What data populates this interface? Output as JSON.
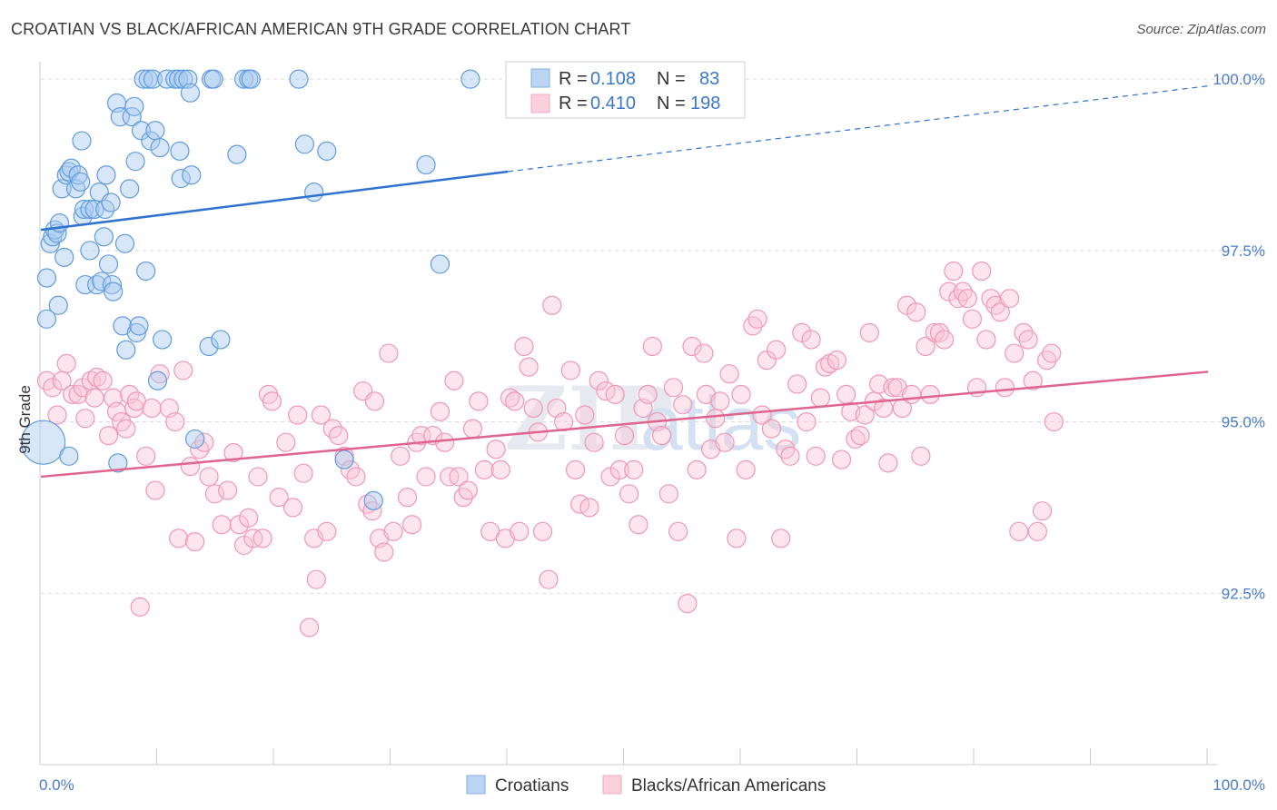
{
  "title": "CROATIAN VS BLACK/AFRICAN AMERICAN 9TH GRADE CORRELATION CHART",
  "source": "Source: ZipAtlas.com",
  "watermark": {
    "zip": "ZIP",
    "atlas": "atlas"
  },
  "colors": {
    "blue": "#7fb0e8",
    "blue_line": "#2f73d0",
    "pink": "#f5a8c0",
    "pink_line": "#e0648e",
    "axis_text": "#4a7cc9",
    "grid": "#d9d9d9"
  },
  "legend": {
    "rows": [
      {
        "r_label": "R =",
        "r_value": "0.108",
        "n_label": "N =",
        "n_value": "83"
      },
      {
        "r_label": "R =",
        "r_value": "0.410",
        "n_label": "N =",
        "n_value": "198"
      }
    ]
  },
  "bottom_legend": [
    "Croatians",
    "Blacks/African Americans"
  ],
  "chart_data": {
    "type": "scatter",
    "ylabel": "9th Grade",
    "xlim": [
      0,
      100
    ],
    "ylim": [
      90.0,
      100.2
    ],
    "x_tick_labels": [
      "0.0%",
      "100.0%"
    ],
    "y_ticks": [
      92.5,
      95.0,
      97.5,
      100.0
    ],
    "y_tick_labels": [
      "92.5%",
      "95.0%",
      "97.5%",
      "100.0%"
    ],
    "grid": true,
    "series": [
      {
        "name": "Croatians",
        "color": "#7fb0e8",
        "trend": {
          "x": [
            0,
            40
          ],
          "y": [
            97.8,
            98.65
          ],
          "dashed_to": [
            100,
            99.9
          ]
        },
        "points": [
          [
            0.2,
            94.7
          ],
          [
            0.5,
            96.5
          ],
          [
            0.5,
            97.1
          ],
          [
            0.8,
            97.6
          ],
          [
            1.0,
            97.7
          ],
          [
            1.2,
            97.8
          ],
          [
            1.4,
            97.75
          ],
          [
            1.5,
            96.7
          ],
          [
            1.6,
            97.9
          ],
          [
            1.8,
            98.4
          ],
          [
            2.0,
            97.4
          ],
          [
            2.2,
            98.6
          ],
          [
            2.4,
            98.65
          ],
          [
            2.6,
            98.7
          ],
          [
            2.4,
            94.5
          ],
          [
            3.0,
            98.4
          ],
          [
            3.2,
            98.6
          ],
          [
            3.4,
            98.5
          ],
          [
            3.5,
            99.1
          ],
          [
            3.6,
            98.0
          ],
          [
            3.7,
            98.1
          ],
          [
            3.8,
            97.0
          ],
          [
            4.2,
            98.1
          ],
          [
            4.2,
            97.5
          ],
          [
            4.6,
            98.1
          ],
          [
            4.8,
            97.0
          ],
          [
            5.0,
            98.35
          ],
          [
            5.2,
            97.05
          ],
          [
            5.4,
            97.7
          ],
          [
            5.5,
            98.1
          ],
          [
            5.6,
            98.6
          ],
          [
            5.8,
            97.3
          ],
          [
            6.0,
            98.2
          ],
          [
            6.1,
            97.0
          ],
          [
            6.2,
            96.9
          ],
          [
            6.5,
            99.65
          ],
          [
            6.6,
            94.4
          ],
          [
            6.8,
            99.45
          ],
          [
            7.0,
            96.4
          ],
          [
            7.2,
            97.6
          ],
          [
            7.3,
            96.05
          ],
          [
            7.6,
            98.4
          ],
          [
            7.8,
            99.45
          ],
          [
            8.0,
            99.6
          ],
          [
            8.1,
            98.8
          ],
          [
            8.2,
            96.3
          ],
          [
            8.4,
            96.4
          ],
          [
            8.6,
            99.25
          ],
          [
            8.8,
            100.0
          ],
          [
            9.0,
            97.2
          ],
          [
            9.2,
            100.0
          ],
          [
            9.4,
            99.1
          ],
          [
            9.6,
            100.0
          ],
          [
            9.8,
            99.25
          ],
          [
            10.0,
            95.6
          ],
          [
            10.2,
            99.0
          ],
          [
            10.4,
            96.2
          ],
          [
            10.8,
            100.0
          ],
          [
            11.5,
            100.0
          ],
          [
            11.8,
            100.0
          ],
          [
            11.9,
            98.95
          ],
          [
            12.0,
            98.55
          ],
          [
            12.2,
            100.0
          ],
          [
            12.6,
            100.0
          ],
          [
            12.8,
            99.8
          ],
          [
            12.9,
            98.6
          ],
          [
            13.2,
            94.75
          ],
          [
            14.4,
            96.1
          ],
          [
            14.6,
            100.0
          ],
          [
            14.8,
            100.0
          ],
          [
            15.4,
            96.2
          ],
          [
            16.8,
            98.9
          ],
          [
            17.4,
            100.0
          ],
          [
            17.8,
            100.0
          ],
          [
            18.0,
            100.0
          ],
          [
            22.1,
            100.0
          ],
          [
            22.6,
            99.05
          ],
          [
            23.4,
            98.35
          ],
          [
            24.5,
            98.95
          ],
          [
            26.0,
            94.45
          ],
          [
            28.5,
            93.85
          ],
          [
            33.0,
            98.75
          ],
          [
            34.2,
            97.3
          ],
          [
            36.8,
            100.0
          ]
        ]
      },
      {
        "name": "Blacks/African Americans",
        "color": "#f5a8c0",
        "trend": {
          "x": [
            0,
            100
          ],
          "y": [
            94.2,
            95.73
          ]
        },
        "points": [
          [
            0.5,
            95.6
          ],
          [
            1.0,
            95.5
          ],
          [
            1.4,
            95.1
          ],
          [
            1.8,
            95.6
          ],
          [
            2.2,
            95.85
          ],
          [
            2.7,
            95.4
          ],
          [
            3.2,
            95.4
          ],
          [
            3.6,
            95.5
          ],
          [
            3.8,
            95.05
          ],
          [
            4.3,
            95.6
          ],
          [
            4.6,
            95.35
          ],
          [
            4.8,
            95.65
          ],
          [
            5.3,
            95.6
          ],
          [
            5.8,
            94.8
          ],
          [
            6.2,
            95.35
          ],
          [
            6.5,
            95.15
          ],
          [
            6.9,
            95.0
          ],
          [
            7.3,
            94.9
          ],
          [
            7.6,
            95.4
          ],
          [
            8.0,
            95.2
          ],
          [
            8.2,
            95.3
          ],
          [
            8.5,
            92.3
          ],
          [
            9.0,
            94.5
          ],
          [
            9.5,
            95.2
          ],
          [
            9.8,
            94.0
          ],
          [
            10.2,
            95.7
          ],
          [
            11.0,
            95.2
          ],
          [
            11.5,
            95.0
          ],
          [
            11.8,
            93.3
          ],
          [
            12.2,
            95.75
          ],
          [
            12.8,
            94.35
          ],
          [
            13.2,
            93.25
          ],
          [
            13.6,
            94.6
          ],
          [
            14.0,
            94.7
          ],
          [
            14.4,
            94.2
          ],
          [
            14.9,
            93.95
          ],
          [
            15.5,
            93.5
          ],
          [
            16.0,
            94.0
          ],
          [
            16.5,
            94.55
          ],
          [
            17.0,
            93.5
          ],
          [
            17.4,
            93.2
          ],
          [
            17.8,
            93.6
          ],
          [
            18.2,
            93.3
          ],
          [
            18.6,
            94.2
          ],
          [
            19.0,
            93.3
          ],
          [
            19.5,
            95.4
          ],
          [
            19.8,
            95.3
          ],
          [
            20.4,
            93.9
          ],
          [
            21.0,
            94.7
          ],
          [
            21.6,
            93.75
          ],
          [
            22.0,
            95.1
          ],
          [
            22.5,
            94.25
          ],
          [
            23.0,
            92.0
          ],
          [
            23.4,
            93.3
          ],
          [
            23.6,
            92.7
          ],
          [
            24.0,
            95.1
          ],
          [
            24.5,
            93.4
          ],
          [
            25.0,
            94.9
          ],
          [
            25.5,
            94.8
          ],
          [
            26.0,
            94.5
          ],
          [
            26.5,
            94.3
          ],
          [
            27.0,
            94.2
          ],
          [
            27.6,
            95.45
          ],
          [
            28.0,
            93.8
          ],
          [
            28.4,
            93.7
          ],
          [
            28.6,
            95.3
          ],
          [
            29.0,
            93.3
          ],
          [
            29.4,
            93.1
          ],
          [
            29.8,
            96.0
          ],
          [
            30.2,
            93.4
          ],
          [
            30.8,
            94.5
          ],
          [
            31.4,
            93.9
          ],
          [
            31.8,
            93.5
          ],
          [
            32.2,
            94.7
          ],
          [
            32.6,
            94.8
          ],
          [
            33.0,
            94.2
          ],
          [
            33.6,
            94.8
          ],
          [
            34.2,
            95.15
          ],
          [
            34.6,
            94.7
          ],
          [
            35.0,
            94.2
          ],
          [
            35.4,
            95.6
          ],
          [
            35.8,
            94.2
          ],
          [
            36.2,
            93.9
          ],
          [
            36.6,
            94.0
          ],
          [
            37.0,
            94.9
          ],
          [
            37.5,
            95.3
          ],
          [
            38.0,
            94.3
          ],
          [
            38.5,
            93.4
          ],
          [
            39.0,
            94.6
          ],
          [
            39.4,
            94.3
          ],
          [
            39.8,
            93.3
          ],
          [
            40.2,
            95.35
          ],
          [
            40.6,
            95.3
          ],
          [
            41.0,
            93.4
          ],
          [
            41.4,
            96.1
          ],
          [
            41.8,
            95.8
          ],
          [
            42.2,
            95.2
          ],
          [
            42.6,
            94.85
          ],
          [
            43.0,
            93.4
          ],
          [
            43.5,
            92.7
          ],
          [
            43.8,
            96.7
          ],
          [
            44.2,
            95.2
          ],
          [
            44.8,
            95.0
          ],
          [
            45.4,
            95.75
          ],
          [
            45.8,
            94.3
          ],
          [
            46.2,
            93.8
          ],
          [
            46.6,
            95.1
          ],
          [
            47.0,
            93.75
          ],
          [
            47.4,
            94.7
          ],
          [
            47.8,
            95.6
          ],
          [
            48.4,
            95.45
          ],
          [
            48.8,
            94.2
          ],
          [
            49.2,
            95.4
          ],
          [
            49.6,
            94.3
          ],
          [
            50.0,
            94.8
          ],
          [
            50.4,
            93.95
          ],
          [
            50.8,
            94.3
          ],
          [
            51.2,
            93.5
          ],
          [
            51.6,
            95.2
          ],
          [
            52.0,
            95.4
          ],
          [
            52.4,
            96.1
          ],
          [
            52.8,
            95.0
          ],
          [
            53.2,
            94.8
          ],
          [
            53.8,
            93.95
          ],
          [
            54.2,
            95.5
          ],
          [
            54.6,
            93.4
          ],
          [
            55.0,
            95.25
          ],
          [
            55.4,
            92.35
          ],
          [
            55.8,
            96.1
          ],
          [
            56.2,
            94.3
          ],
          [
            56.8,
            96.0
          ],
          [
            57.0,
            95.4
          ],
          [
            57.4,
            94.6
          ],
          [
            57.8,
            95.05
          ],
          [
            58.2,
            95.3
          ],
          [
            58.6,
            94.7
          ],
          [
            59.0,
            95.7
          ],
          [
            59.6,
            93.3
          ],
          [
            60.0,
            95.4
          ],
          [
            60.4,
            94.3
          ],
          [
            61.0,
            96.4
          ],
          [
            61.4,
            96.5
          ],
          [
            61.8,
            95.1
          ],
          [
            62.2,
            95.9
          ],
          [
            62.6,
            94.9
          ],
          [
            63.0,
            96.05
          ],
          [
            63.4,
            93.3
          ],
          [
            63.8,
            94.6
          ],
          [
            64.2,
            94.5
          ],
          [
            64.8,
            95.55
          ],
          [
            65.2,
            96.3
          ],
          [
            65.6,
            95.0
          ],
          [
            66.0,
            96.2
          ],
          [
            66.4,
            94.5
          ],
          [
            66.8,
            95.35
          ],
          [
            67.2,
            95.8
          ],
          [
            67.6,
            95.85
          ],
          [
            68.2,
            95.9
          ],
          [
            68.6,
            94.45
          ],
          [
            69.0,
            95.4
          ],
          [
            69.4,
            95.15
          ],
          [
            69.8,
            94.75
          ],
          [
            70.2,
            94.8
          ],
          [
            70.6,
            95.1
          ],
          [
            71.0,
            96.3
          ],
          [
            71.4,
            95.3
          ],
          [
            71.8,
            95.55
          ],
          [
            72.2,
            95.2
          ],
          [
            72.6,
            94.4
          ],
          [
            73.0,
            95.5
          ],
          [
            73.4,
            95.5
          ],
          [
            73.8,
            95.2
          ],
          [
            74.2,
            96.7
          ],
          [
            74.6,
            95.4
          ],
          [
            75.0,
            96.6
          ],
          [
            75.4,
            94.5
          ],
          [
            75.8,
            96.1
          ],
          [
            76.2,
            95.4
          ],
          [
            76.6,
            96.3
          ],
          [
            77.0,
            96.3
          ],
          [
            77.4,
            96.2
          ],
          [
            77.8,
            96.9
          ],
          [
            78.2,
            97.2
          ],
          [
            78.6,
            96.8
          ],
          [
            79.0,
            96.9
          ],
          [
            79.4,
            96.8
          ],
          [
            79.8,
            96.5
          ],
          [
            80.2,
            95.5
          ],
          [
            80.6,
            97.2
          ],
          [
            81.0,
            96.2
          ],
          [
            81.4,
            96.8
          ],
          [
            81.8,
            96.7
          ],
          [
            82.2,
            96.6
          ],
          [
            82.6,
            95.5
          ],
          [
            83.0,
            96.8
          ],
          [
            83.4,
            96.0
          ],
          [
            83.8,
            93.4
          ],
          [
            84.2,
            96.3
          ],
          [
            84.6,
            96.2
          ],
          [
            85.0,
            95.6
          ],
          [
            85.4,
            93.4
          ],
          [
            85.8,
            93.7
          ],
          [
            86.2,
            95.9
          ],
          [
            86.6,
            96.0
          ],
          [
            86.8,
            95.0
          ]
        ]
      }
    ]
  }
}
